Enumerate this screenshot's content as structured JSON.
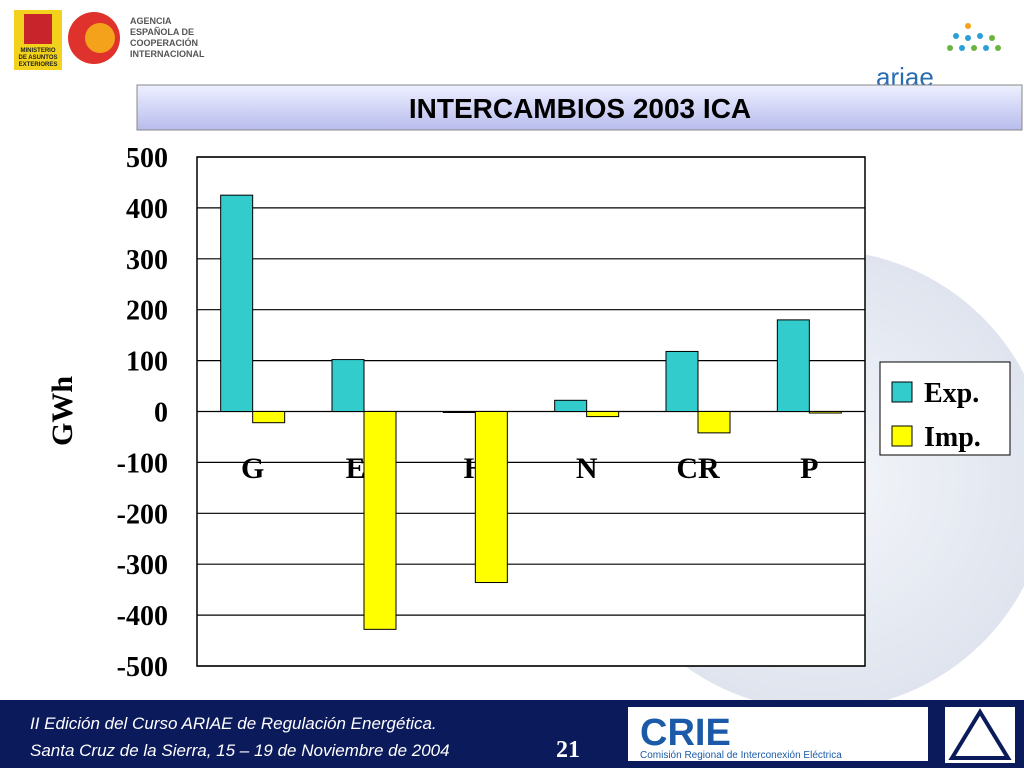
{
  "header": {
    "agency": [
      "AGENCIA",
      "ESPAÑOLA DE",
      "COOPERACIÓN",
      "INTERNACIONAL"
    ],
    "ministry": [
      "MINISTERIO",
      "DE ASUNTOS",
      "EXTERIORES"
    ],
    "ariae": "ariae"
  },
  "chart_data": {
    "type": "bar",
    "title": "INTERCAMBIOS 2003  ICA",
    "y_label": "GWh",
    "categories": [
      "G",
      "ES",
      "H",
      "N",
      "CR",
      "P"
    ],
    "series": [
      {
        "name": "Exp.",
        "color": "#33cccc",
        "values": [
          425,
          102,
          0,
          22,
          118,
          180
        ]
      },
      {
        "name": "Imp.",
        "color": "#ffff00",
        "values": [
          -22,
          -428,
          -336,
          -10,
          -42,
          -3
        ]
      }
    ],
    "ylim": [
      -500,
      500
    ],
    "yticks": [
      -500,
      -400,
      -300,
      -200,
      -100,
      0,
      100,
      200,
      300,
      400,
      500
    ],
    "grid": true,
    "legend": "right"
  },
  "footer": {
    "line1": "II Edición del Curso ARIAE de Regulación Energética.",
    "line2": "Santa Cruz de la Sierra, 15 – 19  de Noviembre de 2004",
    "page": "21",
    "crie": "CRIE",
    "crie_sub": "Comisión Regional de Interconexión Eléctrica"
  }
}
